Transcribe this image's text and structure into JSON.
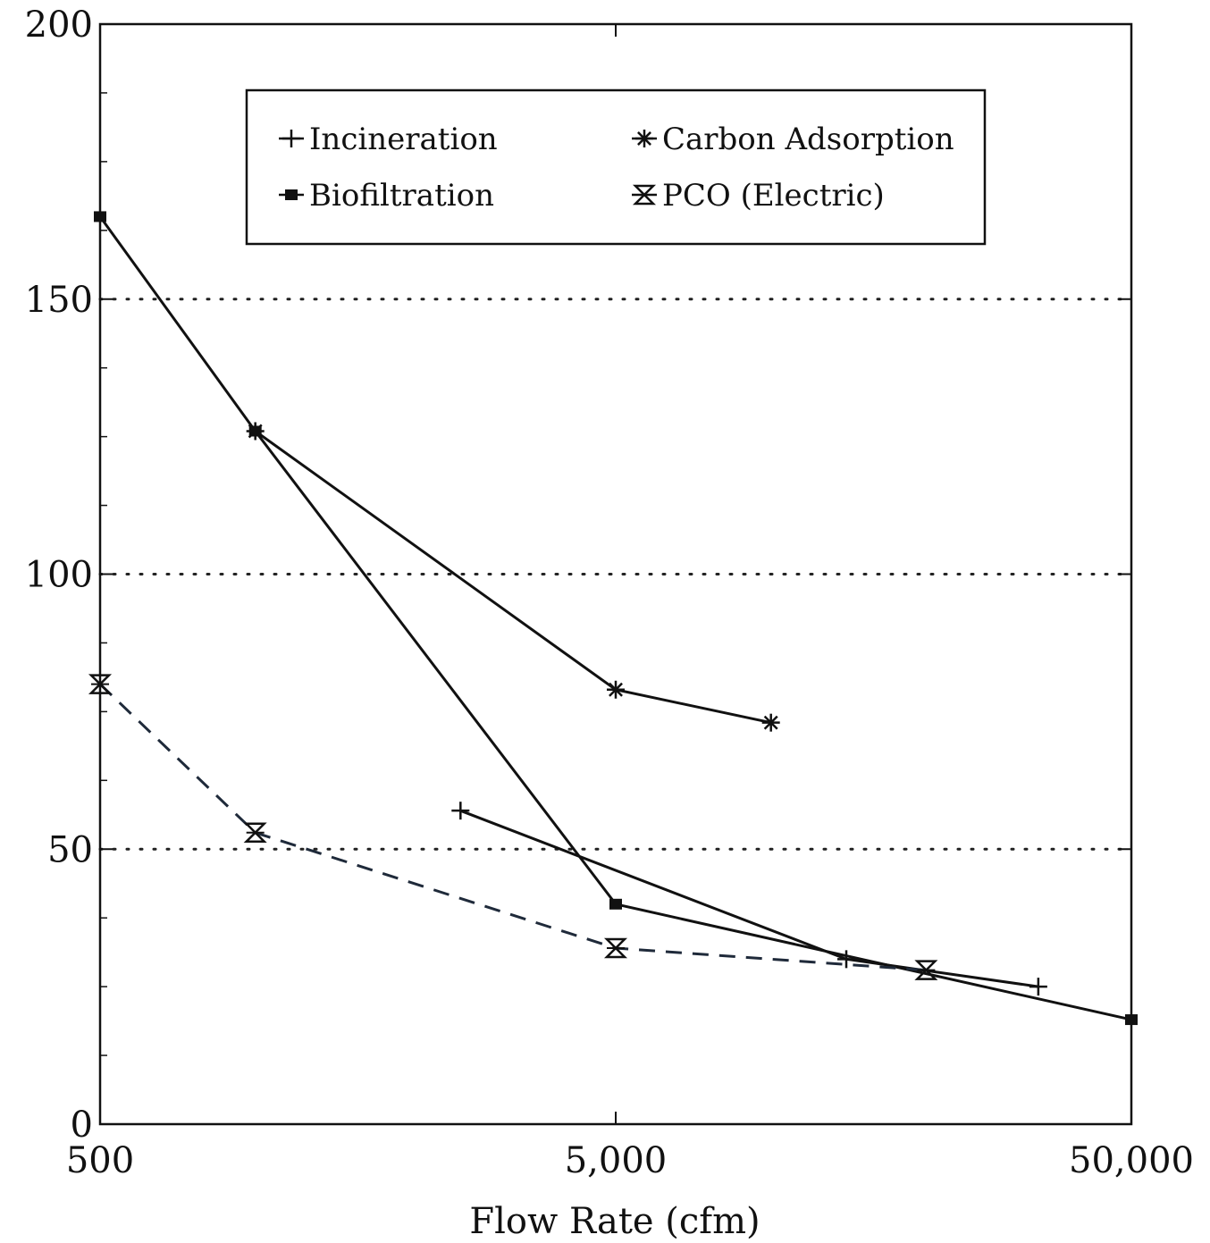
{
  "chart_data": {
    "type": "line",
    "title": "",
    "xlabel": "Flow Rate (cfm)",
    "ylabel": "",
    "xscale": "log",
    "xlim": [
      500,
      50000
    ],
    "ylim": [
      0,
      200
    ],
    "x_ticks": [
      500,
      5000,
      50000
    ],
    "x_tick_labels": [
      "500",
      "5,000",
      "50,000"
    ],
    "y_ticks": [
      0,
      50,
      100,
      150,
      200
    ],
    "y_tick_labels": [
      "0",
      "50",
      "100",
      "150",
      "200"
    ],
    "grid": "dotted horizontal lines at 50, 100, 150",
    "legend_position": "top",
    "series": [
      {
        "name": "Incineration",
        "marker": "plus",
        "line": "solid",
        "x": [
          2500,
          14000,
          33000
        ],
        "y": [
          57,
          30,
          25
        ]
      },
      {
        "name": "Carbon Adsorption",
        "marker": "asterisk",
        "line": "solid",
        "x": [
          1000,
          5000,
          10000
        ],
        "y": [
          126,
          79,
          73
        ]
      },
      {
        "name": "Biofiltration",
        "marker": "filled-square",
        "line": "solid",
        "x": [
          500,
          1000,
          5000,
          50000
        ],
        "y": [
          165,
          126,
          40,
          19
        ]
      },
      {
        "name": "PCO (Electric)",
        "marker": "hourglass",
        "line": "dashed",
        "x": [
          500,
          1000,
          5000,
          20000
        ],
        "y": [
          80,
          53,
          32,
          28
        ]
      }
    ]
  }
}
